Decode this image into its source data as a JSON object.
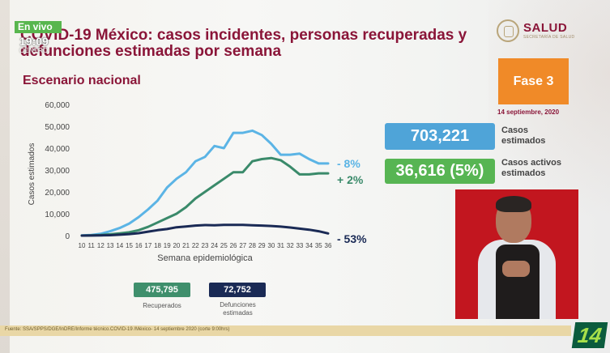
{
  "broadcast": {
    "live_label": "En vivo",
    "time": "19:09",
    "zone": "CENTRO"
  },
  "header": {
    "title": "COVID-19 México: casos incidentes, personas recuperadas y defunciones estimadas por semana",
    "subtitle": "Escenario nacional",
    "logo_text": "SALUD",
    "logo_sub": "SECRETARÍA DE SALUD"
  },
  "phase": {
    "label": "Fase 3",
    "date": "14 septiembre, 2020",
    "color": "#f08a28"
  },
  "kpis": {
    "cases_value": "703,221",
    "cases_label": "Casos estimados",
    "active_value": "36,616 (5%)",
    "active_label": "Casos activos estimados"
  },
  "legend": {
    "recovered_value": "475,795",
    "recovered_label": "Recuperados",
    "deaths_value": "72,752",
    "deaths_label": "Defunciones estimadas"
  },
  "source": "Fuente: SSA/SPPS/DGE/InDRE/Informe técnico.COVID-19 /México- 14 septiembre 2020 (corte 9:00hrs)",
  "channel": "14",
  "colors": {
    "cases": "#5bb4e5",
    "recovered": "#3a8a6a",
    "deaths": "#1a2a55",
    "title": "#8a1538"
  },
  "chart_data": {
    "type": "line",
    "title": "",
    "xlabel": "Semana epidemiológica",
    "ylabel": "Casos estimados",
    "ylim": [
      0,
      60000
    ],
    "yticks": [
      "0",
      "10,000",
      "20,000",
      "30,000",
      "40,000",
      "50,000",
      "60,000"
    ],
    "x": [
      10,
      11,
      12,
      13,
      14,
      15,
      16,
      17,
      18,
      19,
      20,
      21,
      22,
      23,
      24,
      25,
      26,
      27,
      28,
      29,
      30,
      31,
      32,
      33,
      34,
      35,
      36
    ],
    "series": [
      {
        "key": "cases",
        "values": [
          100,
          300,
          800,
          2000,
          3500,
          5500,
          8500,
          12000,
          16000,
          22000,
          26000,
          29000,
          34000,
          36000,
          41000,
          40000,
          47000,
          47000,
          48000,
          46000,
          42000,
          37000,
          37000,
          37500,
          35000,
          33000,
          33000
        ],
        "change_label": "- 8%"
      },
      {
        "key": "recovered",
        "values": [
          0,
          100,
          300,
          600,
          1000,
          1500,
          2500,
          4000,
          6000,
          8000,
          10000,
          13000,
          17000,
          20000,
          23000,
          26000,
          29000,
          29000,
          34000,
          35000,
          35500,
          34500,
          31500,
          28000,
          28000,
          28500,
          28500
        ],
        "change_label": "+ 2%"
      },
      {
        "key": "deaths",
        "values": [
          0,
          50,
          100,
          200,
          400,
          700,
          1100,
          1800,
          2500,
          3000,
          3800,
          4200,
          4600,
          4800,
          4700,
          4900,
          4900,
          4900,
          4700,
          4600,
          4400,
          4100,
          3700,
          3200,
          2700,
          2000,
          1000
        ],
        "change_label": "- 53%"
      }
    ],
    "grid": false,
    "legend": "bottom"
  }
}
